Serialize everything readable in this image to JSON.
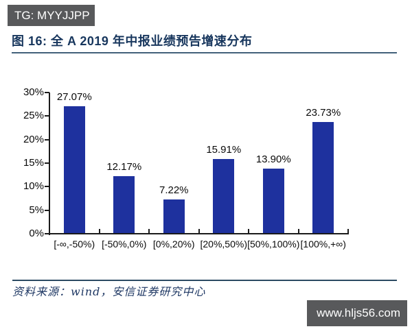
{
  "header": {
    "tg_badge": "TG: MYYJJPP",
    "title": "图 16: 全 A 2019 年中报业绩预告增速分布"
  },
  "chart_data": {
    "type": "bar",
    "title": "全 A 2019 年中报业绩预告增速分布",
    "categories": [
      "[-∞,-50%)",
      "[-50%,0%)",
      "[0%,20%)",
      "[20%,50%)",
      "[50%,100%)",
      "[100%,+∞)"
    ],
    "values": [
      27.07,
      12.17,
      7.22,
      15.91,
      13.9,
      23.73
    ],
    "value_labels": [
      "27.07%",
      "12.17%",
      "7.22%",
      "15.91%",
      "13.90%",
      "23.73%"
    ],
    "y_ticks": [
      "0%",
      "5%",
      "10%",
      "15%",
      "20%",
      "25%",
      "30%"
    ],
    "ylim": [
      0,
      30
    ],
    "xlabel": "",
    "ylabel": "",
    "grid": false,
    "legend": false,
    "bar_color": "#1e319e"
  },
  "footer": {
    "source": "资料来源：wind，安信证券研究中心",
    "watermark": "www.hljs56.com"
  },
  "colors": {
    "bar": "#1e319e",
    "title_text": "#17365d",
    "title_rule": "#41607a",
    "source_text": "#1f3864",
    "source_rule": "#2b4a63",
    "axis": "#1a1a1a",
    "badge_bg": "#58595b",
    "badge_text": "#ffffff",
    "watermark_bg": "#58595b",
    "watermark_text": "#ffffff"
  }
}
